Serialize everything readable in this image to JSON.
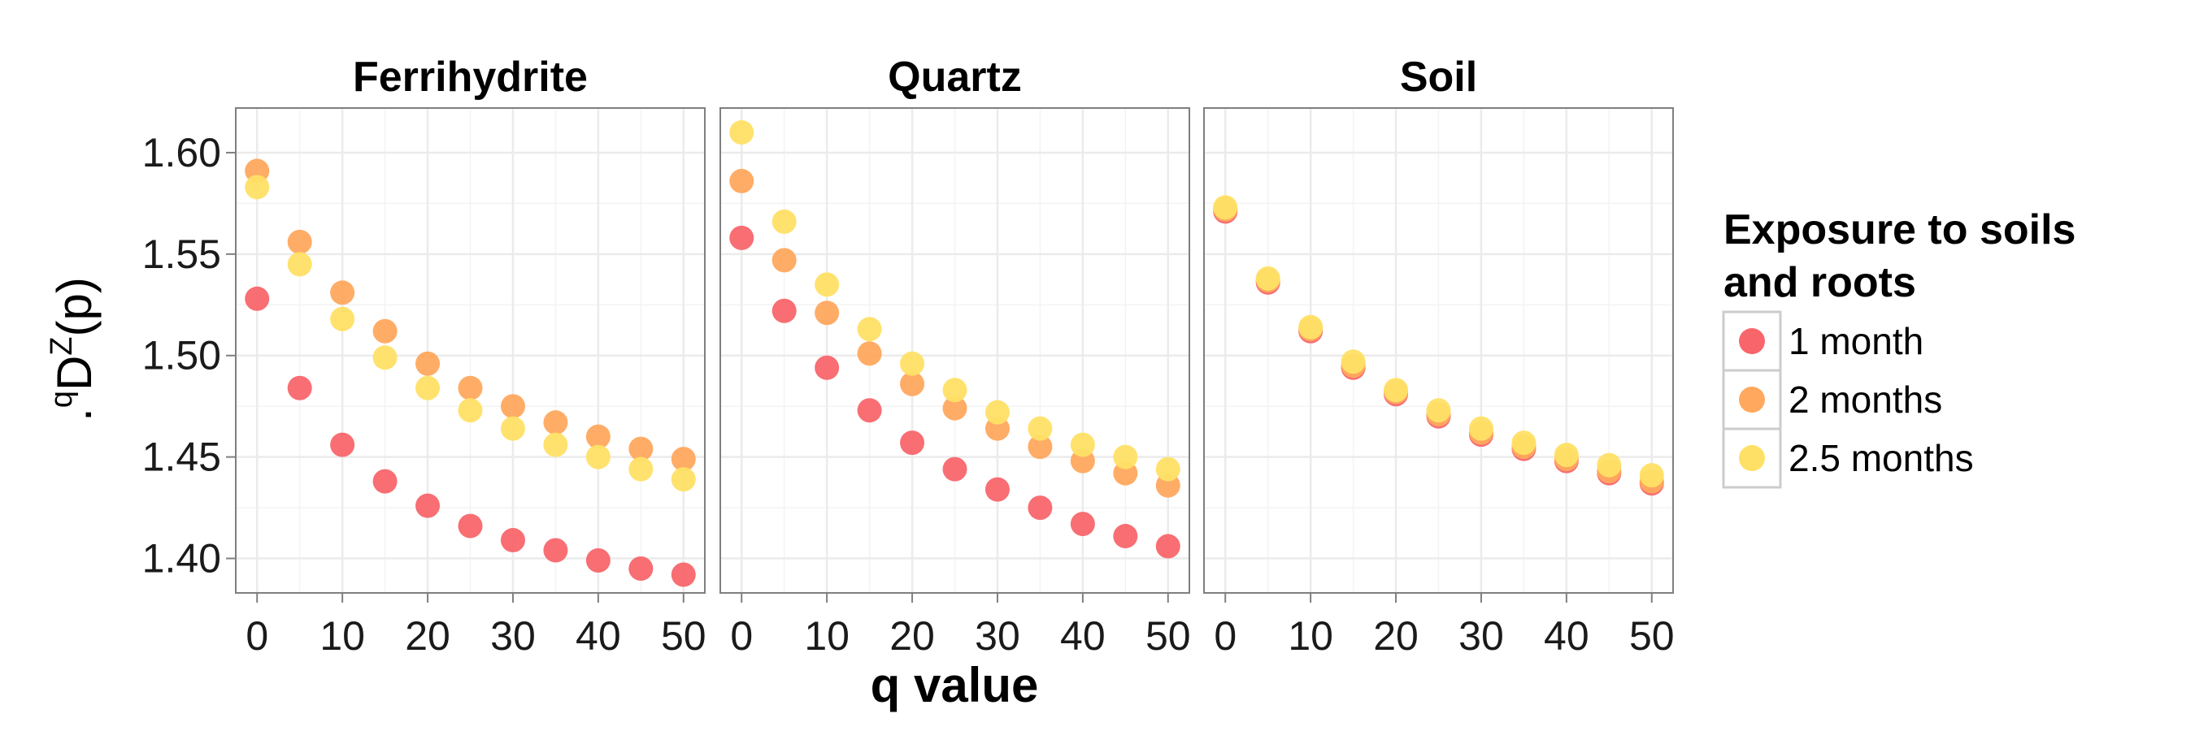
{
  "chart_data": {
    "type": "scatter",
    "facets": [
      "Ferrihydrite",
      "Quartz",
      "Soil"
    ],
    "xlabel": "q value",
    "ylabel": {
      "prefix": ".",
      "sup_q": "q",
      "base": "D",
      "sup_z": "Z",
      "suffix": "(p)"
    },
    "xlim": [
      -2.5,
      52.5
    ],
    "ylim": [
      1.383,
      1.622
    ],
    "x_ticks": [
      0,
      10,
      20,
      30,
      40,
      50
    ],
    "x_tick_labels": [
      "0",
      "10",
      "20",
      "30",
      "40",
      "50"
    ],
    "y_ticks": [
      1.4,
      1.45,
      1.5,
      1.55,
      1.6
    ],
    "y_tick_labels": [
      "1.40",
      "1.45",
      "1.50",
      "1.55",
      "1.60"
    ],
    "grid": true,
    "legend": {
      "title_lines": [
        "Exposure to soils",
        "and roots"
      ],
      "position": "right"
    },
    "x": [
      0,
      5,
      10,
      15,
      20,
      25,
      30,
      35,
      40,
      45,
      50
    ],
    "series": [
      {
        "name": "1 month",
        "color": "#F8666B",
        "values": {
          "Ferrihydrite": [
            1.528,
            1.484,
            1.456,
            1.438,
            1.426,
            1.416,
            1.409,
            1.404,
            1.399,
            1.395,
            1.392
          ],
          "Quartz": [
            1.558,
            1.522,
            1.494,
            1.473,
            1.457,
            1.444,
            1.434,
            1.425,
            1.417,
            1.411,
            1.406
          ],
          "Soil": [
            1.571,
            1.536,
            1.512,
            1.494,
            1.481,
            1.47,
            1.461,
            1.454,
            1.448,
            1.442,
            1.437
          ]
        }
      },
      {
        "name": "2 months",
        "color": "#FFA85E",
        "values": {
          "Ferrihydrite": [
            1.591,
            1.556,
            1.531,
            1.512,
            1.496,
            1.484,
            1.475,
            1.467,
            1.46,
            1.454,
            1.449
          ],
          "Quartz": [
            1.586,
            1.547,
            1.521,
            1.501,
            1.486,
            1.474,
            1.464,
            1.455,
            1.448,
            1.442,
            1.436
          ],
          "Soil": [
            1.572,
            1.537,
            1.513,
            1.495,
            1.482,
            1.471,
            1.462,
            1.455,
            1.449,
            1.443,
            1.438
          ]
        }
      },
      {
        "name": "2.5 months",
        "color": "#FFE066",
        "values": {
          "Ferrihydrite": [
            1.583,
            1.545,
            1.518,
            1.499,
            1.484,
            1.473,
            1.464,
            1.456,
            1.45,
            1.444,
            1.439
          ],
          "Quartz": [
            1.61,
            1.566,
            1.535,
            1.513,
            1.496,
            1.483,
            1.472,
            1.464,
            1.456,
            1.45,
            1.444
          ],
          "Soil": [
            1.573,
            1.538,
            1.514,
            1.497,
            1.483,
            1.473,
            1.464,
            1.457,
            1.451,
            1.446,
            1.441
          ]
        }
      }
    ]
  }
}
